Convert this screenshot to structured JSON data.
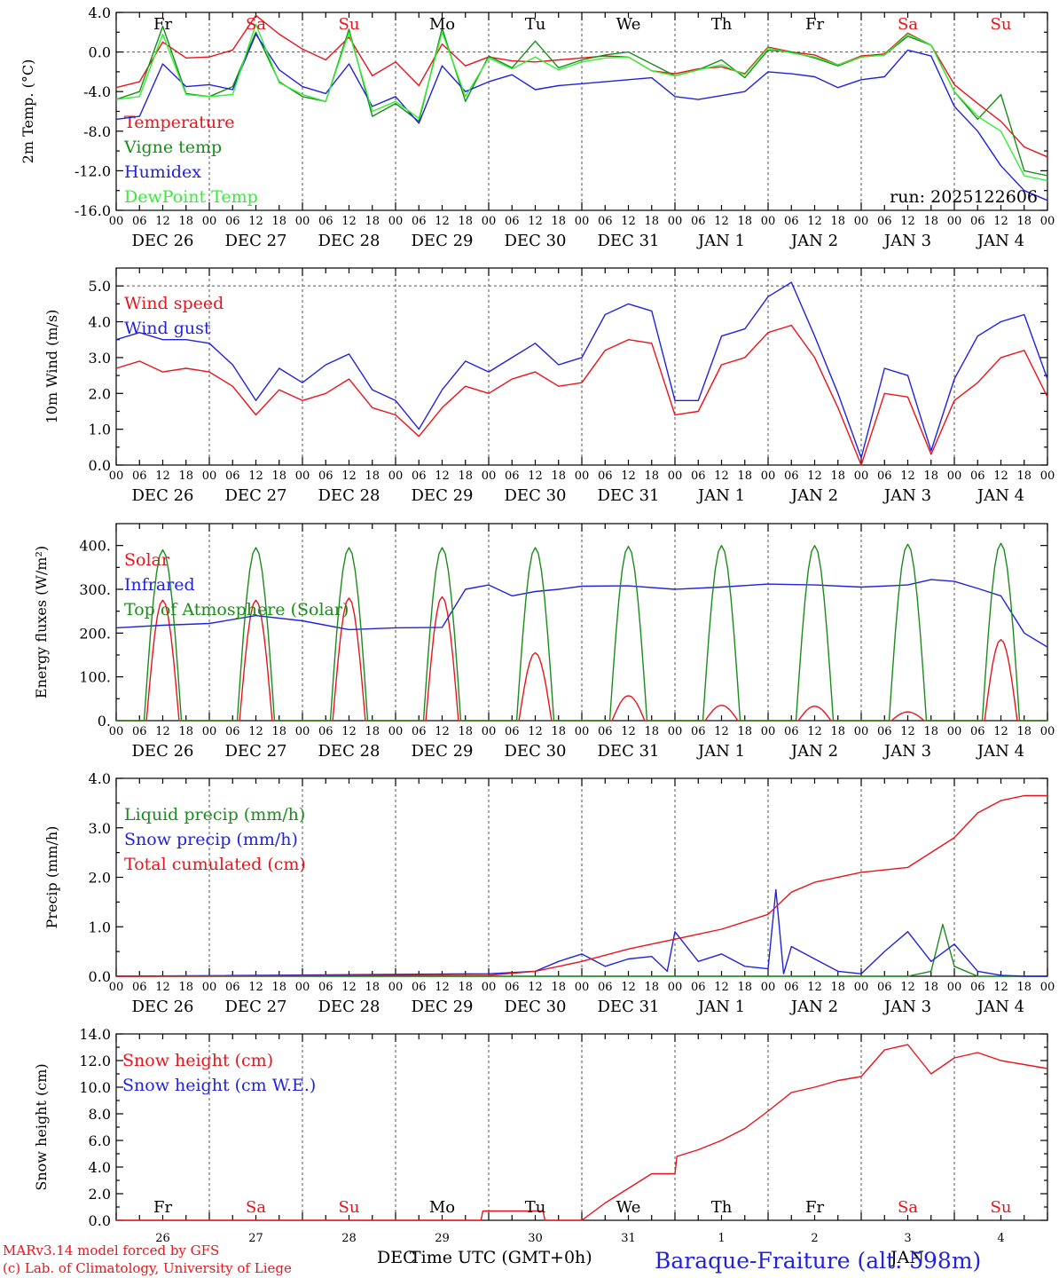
{
  "colors": {
    "red": "#e8141b",
    "green": "#1a8c1a",
    "blue": "#2222dd",
    "lightgreen": "#33ee33",
    "black": "#000000"
  },
  "day_labels": [
    "DEC 26",
    "DEC 27",
    "DEC 28",
    "DEC 29",
    "DEC 30",
    "DEC 31",
    "JAN  1",
    "JAN  2",
    "JAN  3",
    "JAN  4"
  ],
  "hour_ticks": [
    "00",
    "06",
    "12",
    "18"
  ],
  "day_numbers": [
    "26",
    "27",
    "28",
    "29",
    "30",
    "31",
    "1",
    "2",
    "3",
    "4"
  ],
  "weekdays": [
    {
      "label": "Fr",
      "color": "black"
    },
    {
      "label": "Sa",
      "color": "red"
    },
    {
      "label": "Su",
      "color": "red"
    },
    {
      "label": "Mo",
      "color": "black"
    },
    {
      "label": "Tu",
      "color": "black"
    },
    {
      "label": "We",
      "color": "black"
    },
    {
      "label": "Th",
      "color": "black"
    },
    {
      "label": "Fr",
      "color": "black"
    },
    {
      "label": "Sa",
      "color": "red"
    },
    {
      "label": "Su",
      "color": "red"
    }
  ],
  "footer": {
    "credit_line1": "MARv3.14 model forced by GFS",
    "credit_line2": "(c) Lab. of Climatology, University of Liege",
    "xlabel": "Time UTC (GMT+0h)",
    "month_left": "DEC",
    "month_right": "JAN",
    "station": "Baraque-Fraiture (alt. 598m)"
  },
  "chart_data": [
    {
      "type": "line",
      "id": "temperature",
      "ylabel": "2m Temp. (°C)",
      "ylim": [
        -16,
        4
      ],
      "yticks": [
        "4.0",
        "0.0",
        "-4.0",
        "-8.0",
        "-12.0",
        "-16.0"
      ],
      "ytick_values": [
        4,
        0,
        -4,
        -8,
        -12,
        -16
      ],
      "dashed_level": 0,
      "annotation": "run: 2025122606",
      "x_hours": [
        0,
        6,
        12,
        18,
        24,
        30,
        36,
        42,
        48,
        54,
        60,
        66,
        72,
        78,
        84,
        90,
        96,
        102,
        108,
        114,
        120,
        126,
        132,
        138,
        144,
        150,
        156,
        162,
        168,
        174,
        180,
        186,
        192,
        198,
        204,
        210,
        216,
        222,
        228,
        234,
        240
      ],
      "series": [
        {
          "name": "Temperature",
          "color": "red",
          "values": [
            -3.6,
            -3.0,
            1.0,
            -0.6,
            -0.5,
            0.2,
            3.7,
            1.8,
            0.3,
            -0.8,
            1.5,
            -2.4,
            -1.0,
            -3.4,
            0.8,
            -1.4,
            -0.5,
            -0.9,
            -1.0,
            -0.8,
            -0.6,
            -0.4,
            -0.5,
            -1.9,
            -2.2,
            -1.7,
            -1.5,
            -2.2,
            0.5,
            0.0,
            -0.3,
            -1.3,
            -0.4,
            -0.2,
            1.9,
            0.7,
            -3.3,
            -5.2,
            -7.0,
            -9.6,
            -10.6
          ]
        },
        {
          "name": "Vigne temp",
          "color": "green",
          "values": [
            -4.8,
            -4.0,
            2.6,
            -4.2,
            -4.5,
            -3.5,
            2.0,
            -3.0,
            -4.5,
            -5.0,
            2.3,
            -6.5,
            -5.2,
            -7.0,
            2.4,
            -5.0,
            -0.4,
            -1.6,
            1.1,
            -1.6,
            -0.8,
            -0.3,
            0.0,
            -1.2,
            -2.4,
            -1.8,
            -0.8,
            -2.6,
            0.2,
            0.0,
            -0.6,
            -1.4,
            -0.5,
            -0.3,
            1.6,
            0.7,
            -4.0,
            -6.8,
            -4.3,
            -12.0,
            -12.5
          ]
        },
        {
          "name": "Humidex",
          "color": "blue",
          "values": [
            -6.8,
            -6.5,
            -1.2,
            -3.5,
            -3.3,
            -3.8,
            1.8,
            -1.8,
            -3.5,
            -4.2,
            -1.2,
            -5.5,
            -4.5,
            -7.2,
            -1.4,
            -4.0,
            -3.0,
            -2.3,
            -3.8,
            -3.4,
            -3.2,
            -3.0,
            -2.8,
            -2.6,
            -4.5,
            -4.8,
            -4.4,
            -4.0,
            -2.0,
            -2.2,
            -2.5,
            -3.6,
            -2.8,
            -2.5,
            0.2,
            -0.4,
            -5.5,
            -8.0,
            -11.5,
            -14.0,
            -15.0
          ]
        },
        {
          "name": "DewPoint Temp",
          "color": "lightgreen",
          "values": [
            -4.8,
            -4.5,
            1.8,
            -4.3,
            -4.5,
            -4.3,
            2.8,
            -3.1,
            -4.3,
            -5.0,
            2.0,
            -6.0,
            -5.0,
            -6.7,
            2.0,
            -4.5,
            -0.6,
            -1.7,
            -0.5,
            -1.8,
            -1.0,
            -0.6,
            -0.5,
            -1.9,
            -2.4,
            -1.8,
            -1.3,
            -2.3,
            0.4,
            -0.1,
            -0.5,
            -1.3,
            -0.5,
            -0.3,
            1.8,
            0.7,
            -4.0,
            -6.5,
            -8.0,
            -12.5,
            -13.0
          ]
        }
      ]
    },
    {
      "type": "line",
      "id": "wind",
      "ylabel": "10m Wind (m/s)",
      "ylim": [
        0,
        5.5
      ],
      "yticks": [
        "5.0",
        "4.0",
        "3.0",
        "2.0",
        "1.0",
        "0.0"
      ],
      "ytick_values": [
        5,
        4,
        3,
        2,
        1,
        0
      ],
      "dashed_level": 5,
      "x_hours": [
        0,
        6,
        12,
        18,
        24,
        30,
        36,
        42,
        48,
        54,
        60,
        66,
        72,
        78,
        84,
        90,
        96,
        102,
        108,
        114,
        120,
        126,
        132,
        138,
        144,
        150,
        156,
        162,
        168,
        174,
        180,
        186,
        192,
        198,
        204,
        210,
        216,
        222,
        228,
        234,
        240
      ],
      "series": [
        {
          "name": "Wind speed",
          "color": "red",
          "values": [
            2.7,
            2.9,
            2.6,
            2.7,
            2.6,
            2.2,
            1.4,
            2.1,
            1.8,
            2.0,
            2.4,
            1.6,
            1.4,
            0.8,
            1.6,
            2.2,
            2.0,
            2.4,
            2.6,
            2.2,
            2.3,
            3.2,
            3.5,
            3.4,
            1.4,
            1.5,
            2.8,
            3.0,
            3.7,
            3.9,
            3.0,
            1.6,
            0.0,
            2.0,
            1.9,
            0.3,
            1.8,
            2.3,
            3.0,
            3.2,
            1.9
          ]
        },
        {
          "name": "Wind gust",
          "color": "blue",
          "values": [
            3.5,
            3.7,
            3.5,
            3.5,
            3.4,
            2.8,
            1.8,
            2.7,
            2.3,
            2.8,
            3.1,
            2.1,
            1.8,
            1.0,
            2.1,
            2.9,
            2.6,
            3.0,
            3.4,
            2.8,
            3.0,
            4.2,
            4.5,
            4.3,
            1.8,
            1.8,
            3.6,
            3.8,
            4.7,
            5.1,
            3.6,
            2.0,
            0.2,
            2.7,
            2.5,
            0.4,
            2.4,
            3.6,
            4.0,
            4.2,
            2.4
          ]
        }
      ]
    },
    {
      "type": "line",
      "id": "energy",
      "ylabel": "Energy fluxes (W/m²)",
      "ylim": [
        0,
        450
      ],
      "yticks": [
        "400.",
        "300.",
        "200.",
        "100.",
        "0."
      ],
      "ytick_values": [
        400,
        300,
        200,
        100,
        0
      ],
      "daily_peaks": {
        "Top of Atmosphere (Solar)": [
          390,
          395,
          395,
          395,
          395,
          398,
          400,
          400,
          403,
          405
        ],
        "Solar": [
          275,
          275,
          280,
          283,
          155,
          57,
          35,
          33,
          20,
          185
        ]
      },
      "series": [
        {
          "name": "Solar",
          "color": "red",
          "values": []
        },
        {
          "name": "Infrared",
          "color": "blue",
          "x_hours": [
            0,
            12,
            24,
            36,
            48,
            60,
            72,
            84,
            90,
            96,
            102,
            108,
            114,
            120,
            132,
            144,
            156,
            168,
            180,
            192,
            204,
            210,
            216,
            222,
            228,
            234,
            240
          ],
          "values": [
            212,
            218,
            222,
            240,
            228,
            208,
            212,
            213,
            300,
            310,
            285,
            295,
            300,
            307,
            308,
            300,
            305,
            312,
            310,
            305,
            310,
            322,
            318,
            302,
            285,
            200,
            168
          ]
        },
        {
          "name": "Top of Atmosphere (Solar)",
          "color": "green",
          "values": []
        }
      ]
    },
    {
      "type": "line",
      "id": "precip",
      "ylabel": "Precip (mm/h)",
      "ylim": [
        0,
        4
      ],
      "yticks": [
        "4.0",
        "3.0",
        "2.0",
        "1.0",
        "0.0"
      ],
      "ytick_values": [
        4,
        3,
        2,
        1,
        0
      ],
      "series": [
        {
          "name": "Liquid precip (mm/h)",
          "color": "green",
          "x_hours": [
            0,
            204,
            210,
            213,
            216,
            222,
            240
          ],
          "values": [
            0,
            0,
            0.1,
            1.05,
            0.2,
            0,
            0
          ]
        },
        {
          "name": "Snow precip (mm/h)",
          "color": "blue",
          "x_hours": [
            0,
            96,
            108,
            114,
            120,
            126,
            132,
            138,
            142,
            144,
            150,
            156,
            162,
            168,
            170,
            172,
            174,
            180,
            186,
            192,
            198,
            204,
            210,
            216,
            222,
            228,
            234,
            240
          ],
          "values": [
            0,
            0.05,
            0.1,
            0.3,
            0.45,
            0.2,
            0.35,
            0.4,
            0.1,
            0.9,
            0.3,
            0.45,
            0.2,
            0.15,
            1.75,
            0.05,
            0.6,
            0.35,
            0.1,
            0.05,
            0.5,
            0.9,
            0.3,
            0.65,
            0.1,
            0.02,
            0,
            0
          ]
        },
        {
          "name": "Total cumulated (cm)",
          "color": "red",
          "x_hours": [
            0,
            96,
            108,
            120,
            132,
            144,
            156,
            168,
            174,
            180,
            192,
            204,
            216,
            222,
            228,
            234,
            240
          ],
          "values": [
            0,
            0.02,
            0.1,
            0.3,
            0.55,
            0.75,
            0.95,
            1.25,
            1.7,
            1.9,
            2.1,
            2.2,
            2.8,
            3.3,
            3.55,
            3.65,
            3.65
          ]
        }
      ]
    },
    {
      "type": "line",
      "id": "snow",
      "ylabel": "Snow height (cm)",
      "ylim": [
        0,
        14
      ],
      "yticks": [
        "14.0",
        "12.0",
        "10.0",
        "8.0",
        "6.0",
        "4.0",
        "2.0",
        "0.0"
      ],
      "ytick_values": [
        14,
        12,
        10,
        8,
        6,
        4,
        2,
        0
      ],
      "series": [
        {
          "name": "Snow height (cm)",
          "color": "red",
          "x_hours": [
            0,
            94,
            94.5,
            110,
            110.5,
            120,
            126,
            132,
            138,
            144,
            144.5,
            150,
            156,
            162,
            168,
            174,
            180,
            186,
            192,
            198,
            204,
            210,
            216,
            222,
            228,
            234,
            240
          ],
          "values": [
            0,
            0,
            0.7,
            0.7,
            0,
            0,
            1.3,
            2.4,
            3.5,
            3.5,
            4.8,
            5.3,
            6.0,
            6.9,
            8.2,
            9.6,
            10.0,
            10.5,
            10.8,
            12.8,
            13.2,
            11.0,
            12.2,
            12.6,
            12.0,
            11.7,
            11.4
          ]
        },
        {
          "name": "Snow height (cm W.E.)",
          "color": "blue",
          "values": []
        }
      ]
    }
  ]
}
